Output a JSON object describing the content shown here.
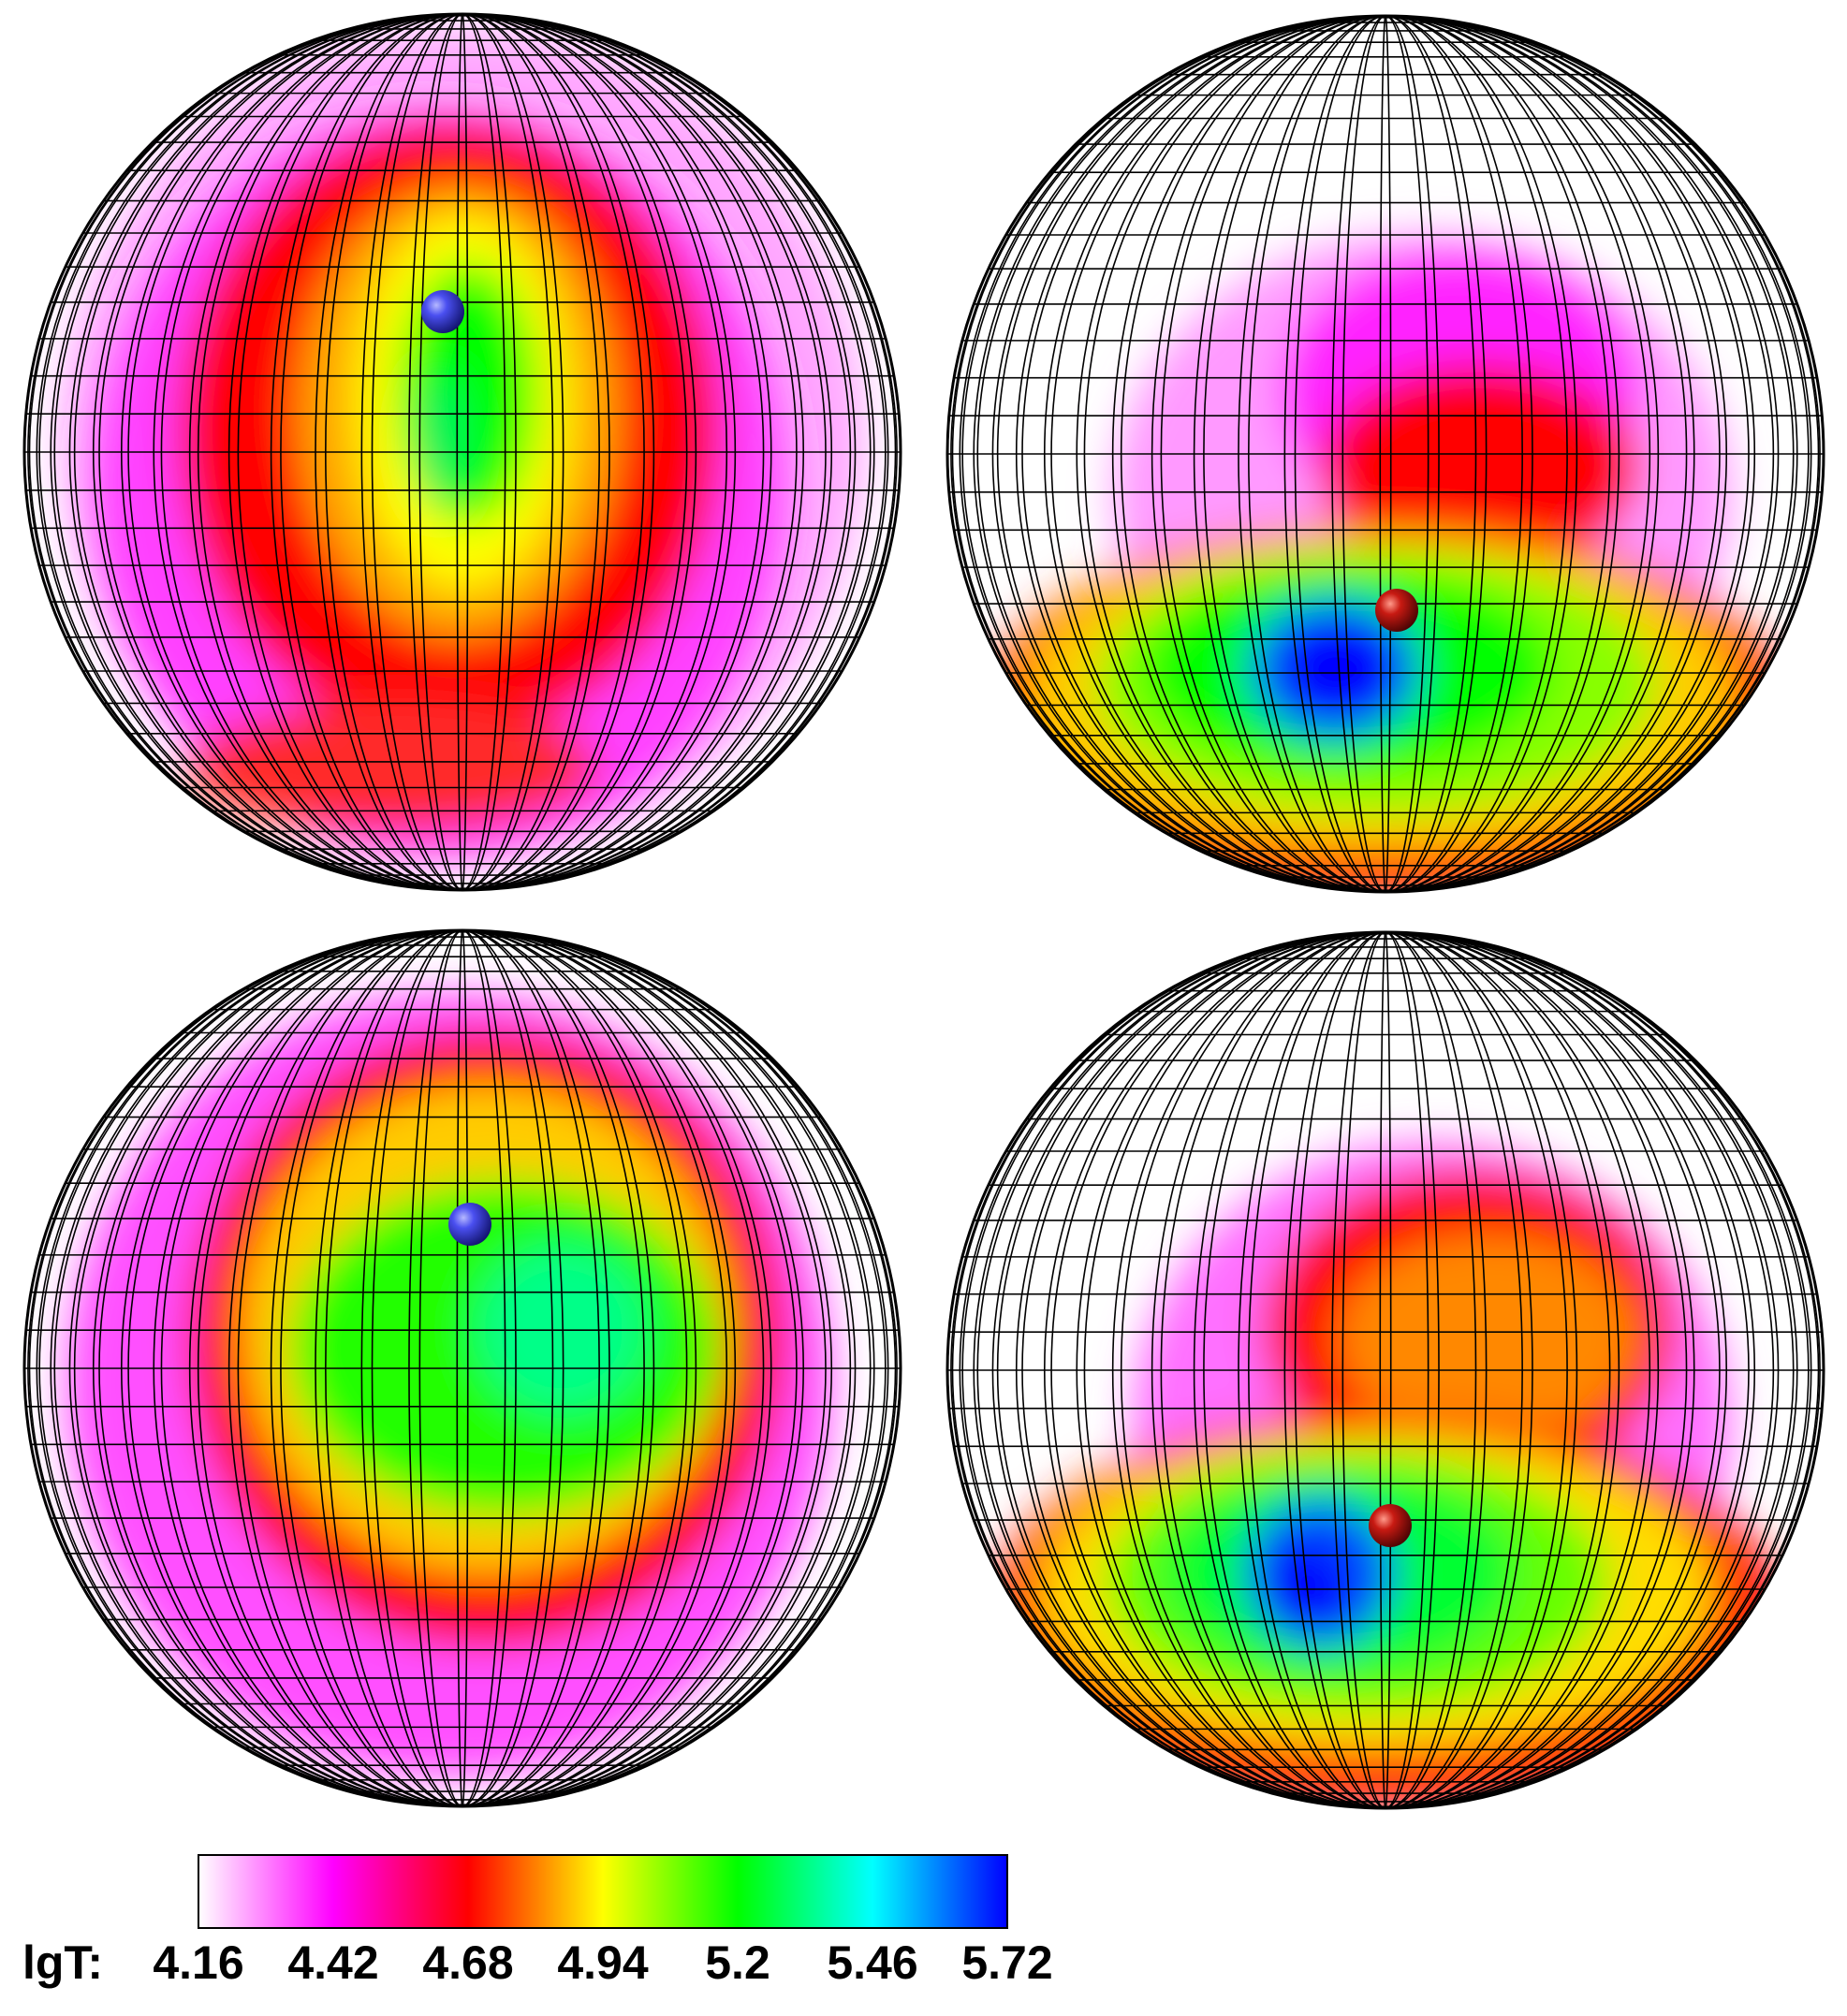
{
  "colormap": [
    "#ffffff",
    "#ff00ff",
    "#ff0000",
    "#ffff00",
    "#00ff00",
    "#00ffff",
    "#0000ff"
  ],
  "colorbar": {
    "label": "lgT:",
    "ticks": [
      "4.16",
      "4.42",
      "4.68",
      "4.94",
      "5.2",
      "5.46",
      "5.72"
    ]
  },
  "globes": [
    {
      "name": "top-left",
      "marker_color": "blue"
    },
    {
      "name": "top-right",
      "marker_color": "red"
    },
    {
      "name": "bottom-left",
      "marker_color": "blue"
    },
    {
      "name": "bottom-right",
      "marker_color": "red"
    }
  ]
}
